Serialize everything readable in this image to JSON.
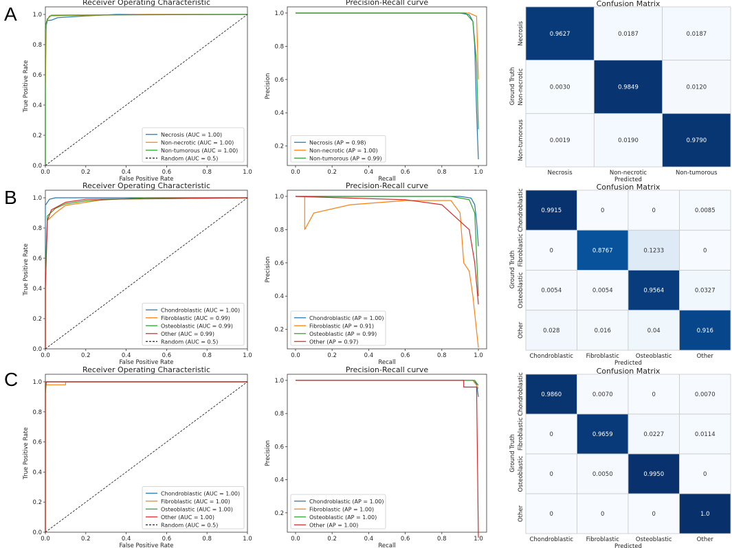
{
  "panel_labels": [
    "A",
    "B",
    "C"
  ],
  "colors": {
    "blue": "#1f77b4",
    "orange": "#ff7f0e",
    "green": "#2ca02c",
    "red": "#d62728",
    "random": "#222222",
    "cm_low": "#f7fbff",
    "cm_high": "#08306b"
  },
  "chart_data": [
    {
      "panel": "A",
      "type": "line",
      "title": "Receiver Operating Characteristic",
      "xlabel": "False Positive Rate",
      "ylabel": "True Positive Rate",
      "xlim": [
        0,
        1
      ],
      "ylim": [
        0,
        1.05
      ],
      "xticks": [
        "0.0",
        "0.2",
        "0.4",
        "0.6",
        "0.8",
        "1.0"
      ],
      "yticks": [
        "0.0",
        "0.2",
        "0.4",
        "0.6",
        "0.8",
        "1.0"
      ],
      "legend": "bottom-right",
      "series": [
        {
          "name": "Necrosis (AUC = 1.00)",
          "color": "#1f77b4",
          "points": [
            [
              0,
              0
            ],
            [
              0,
              0.9
            ],
            [
              0.01,
              0.96
            ],
            [
              0.03,
              0.962
            ],
            [
              0.06,
              0.978
            ],
            [
              0.2,
              0.99
            ],
            [
              0.35,
              1
            ],
            [
              1,
              1
            ]
          ]
        },
        {
          "name": "Non-necrotic (AUC = 1.00)",
          "color": "#ff7f0e",
          "points": [
            [
              0,
              0
            ],
            [
              0,
              0.5
            ],
            [
              0.005,
              0.95
            ],
            [
              0.02,
              0.99
            ],
            [
              0.5,
              1
            ],
            [
              1,
              1
            ]
          ]
        },
        {
          "name": "Non-tumorous (AUC = 1.00)",
          "color": "#2ca02c",
          "points": [
            [
              0,
              0
            ],
            [
              0,
              0.92
            ],
            [
              0.01,
              0.97
            ],
            [
              0.03,
              0.995
            ],
            [
              1,
              1
            ]
          ]
        },
        {
          "name": "Random (AUC = 0.5)",
          "color": "#222222",
          "dashed": true,
          "points": [
            [
              0,
              0
            ],
            [
              1,
              1
            ]
          ]
        }
      ]
    },
    {
      "panel": "A",
      "type": "line",
      "title": "Precision-Recall curve",
      "xlabel": "Recall",
      "ylabel": "Precision",
      "xlim": [
        -0.045,
        1.045
      ],
      "ylim": [
        0.083,
        1.037
      ],
      "xticks": [
        "0.0",
        "0.2",
        "0.4",
        "0.6",
        "0.8",
        "1.0"
      ],
      "yticks": [
        "0.2",
        "0.4",
        "0.6",
        "0.8",
        "1.0"
      ],
      "legend": "bottom-left",
      "series": [
        {
          "name": "Necrosis (AP = 0.98)",
          "color": "#1f77b4",
          "points": [
            [
              0,
              1
            ],
            [
              0.9,
              1
            ],
            [
              0.95,
              0.99
            ],
            [
              0.97,
              0.95
            ],
            [
              0.98,
              0.8
            ],
            [
              0.99,
              0.4
            ],
            [
              1,
              0.12
            ]
          ]
        },
        {
          "name": "Non-necrotic (AP = 1.00)",
          "color": "#ff7f0e",
          "points": [
            [
              0,
              1
            ],
            [
              0.95,
              1
            ],
            [
              0.99,
              0.98
            ],
            [
              1,
              0.6
            ]
          ]
        },
        {
          "name": "Non-tumorous (AP = 0.99)",
          "color": "#2ca02c",
          "points": [
            [
              0,
              1
            ],
            [
              0.93,
              1
            ],
            [
              0.97,
              0.95
            ],
            [
              0.99,
              0.7
            ],
            [
              1,
              0.3
            ]
          ]
        }
      ]
    },
    {
      "panel": "A",
      "type": "heatmap",
      "title": "Confusion Matrix",
      "xlabel": "Predicted",
      "ylabel": "Ground Truth",
      "labels": [
        "Necrosis",
        "Non-necrotic",
        "Non-tumorous"
      ],
      "values": [
        [
          "0.9627",
          "0.0187",
          "0.0187"
        ],
        [
          "0.0030",
          "0.9849",
          "0.0120"
        ],
        [
          "0.0019",
          "0.0190",
          "0.9790"
        ]
      ]
    },
    {
      "panel": "B",
      "type": "line",
      "title": "Receiver Operating Characteristic",
      "xlabel": "False Positive Rate",
      "ylabel": "True Positive Rate",
      "xlim": [
        0,
        1
      ],
      "ylim": [
        0,
        1.05
      ],
      "xticks": [
        "0.0",
        "0.2",
        "0.4",
        "0.6",
        "0.8",
        "1.0"
      ],
      "yticks": [
        "0.0",
        "0.2",
        "0.4",
        "0.6",
        "0.8",
        "1.0"
      ],
      "legend": "bottom-right",
      "series": [
        {
          "name": "Chondroblastic (AUC = 1.00)",
          "color": "#1f77b4",
          "points": [
            [
              0,
              0
            ],
            [
              0,
              0.95
            ],
            [
              0.02,
              0.99
            ],
            [
              0.05,
              1
            ],
            [
              1,
              1
            ]
          ]
        },
        {
          "name": "Fibroblastic (AUC = 0.99)",
          "color": "#ff7f0e",
          "points": [
            [
              0,
              0
            ],
            [
              0,
              0.4
            ],
            [
              0.01,
              0.85
            ],
            [
              0.05,
              0.9
            ],
            [
              0.1,
              0.95
            ],
            [
              0.3,
              0.99
            ],
            [
              1,
              1
            ]
          ]
        },
        {
          "name": "Osteoblastic (AUC = 0.99)",
          "color": "#2ca02c",
          "points": [
            [
              0,
              0
            ],
            [
              0,
              0.5
            ],
            [
              0.01,
              0.88
            ],
            [
              0.05,
              0.93
            ],
            [
              0.1,
              0.96
            ],
            [
              0.2,
              0.98
            ],
            [
              0.5,
              1
            ],
            [
              1,
              1
            ]
          ]
        },
        {
          "name": "Other (AUC = 0.99)",
          "color": "#d62728",
          "points": [
            [
              0,
              0
            ],
            [
              0,
              0.4
            ],
            [
              0.01,
              0.85
            ],
            [
              0.03,
              0.92
            ],
            [
              0.1,
              0.97
            ],
            [
              0.2,
              0.99
            ],
            [
              1,
              1
            ]
          ]
        },
        {
          "name": "Random (AUC = 0.5)",
          "color": "#222222",
          "dashed": true,
          "points": [
            [
              0,
              0
            ],
            [
              1,
              1
            ]
          ]
        }
      ]
    },
    {
      "panel": "B",
      "type": "line",
      "title": "Precision-Recall curve",
      "xlabel": "Recall",
      "ylabel": "Precision",
      "xlim": [
        -0.045,
        1.045
      ],
      "ylim": [
        0.083,
        1.037
      ],
      "xticks": [
        "0.0",
        "0.2",
        "0.4",
        "0.6",
        "0.8",
        "1.0"
      ],
      "yticks": [
        "0.2",
        "0.4",
        "0.6",
        "0.8",
        "1.0"
      ],
      "legend": "bottom-left",
      "series": [
        {
          "name": "Chondroblastic (AP = 1.00)",
          "color": "#1f77b4",
          "points": [
            [
              0,
              1
            ],
            [
              0.9,
              1
            ],
            [
              0.96,
              0.99
            ],
            [
              0.98,
              0.95
            ],
            [
              0.99,
              0.85
            ],
            [
              1,
              0.7
            ]
          ]
        },
        {
          "name": "Fibroblastic (AP = 0.91)",
          "color": "#ff7f0e",
          "points": [
            [
              0.05,
              1
            ],
            [
              0.05,
              0.8
            ],
            [
              0.1,
              0.9
            ],
            [
              0.3,
              0.95
            ],
            [
              0.6,
              0.975
            ],
            [
              0.85,
              0.975
            ],
            [
              0.9,
              0.9
            ],
            [
              0.92,
              0.6
            ],
            [
              0.95,
              0.55
            ],
            [
              0.97,
              0.4
            ],
            [
              1,
              0.09
            ]
          ]
        },
        {
          "name": "Osteoblastic (AP = 0.99)",
          "color": "#2ca02c",
          "points": [
            [
              0,
              1
            ],
            [
              0.85,
              1
            ],
            [
              0.95,
              0.98
            ],
            [
              0.98,
              0.9
            ],
            [
              1,
              0.4
            ]
          ]
        },
        {
          "name": "Other (AP = 0.97)",
          "color": "#d62728",
          "points": [
            [
              0,
              1
            ],
            [
              0.6,
              0.98
            ],
            [
              0.8,
              0.95
            ],
            [
              0.9,
              0.85
            ],
            [
              0.95,
              0.8
            ],
            [
              0.98,
              0.6
            ],
            [
              1,
              0.35
            ]
          ]
        }
      ]
    },
    {
      "panel": "B",
      "type": "heatmap",
      "title": "Confusion Matrix",
      "xlabel": "Predicted",
      "ylabel": "Ground Truth",
      "labels": [
        "Chondroblastic",
        "Fibroblastic",
        "Osteoblastic",
        "Other"
      ],
      "values": [
        [
          "0.9915",
          "0",
          "0",
          "0.0085"
        ],
        [
          "0",
          "0.8767",
          "0.1233",
          "0"
        ],
        [
          "0.0054",
          "0.0054",
          "0.9564",
          "0.0327"
        ],
        [
          "0.028",
          "0.016",
          "0.04",
          "0.916"
        ]
      ]
    },
    {
      "panel": "C",
      "type": "line",
      "title": "Receiver Operating Characteristic",
      "xlabel": "False Positive Rate",
      "ylabel": "True Positive Rate",
      "xlim": [
        0,
        1
      ],
      "ylim": [
        0,
        1.05
      ],
      "xticks": [
        "0.0",
        "0.2",
        "0.4",
        "0.6",
        "0.8",
        "1.0"
      ],
      "yticks": [
        "0.0",
        "0.2",
        "0.4",
        "0.6",
        "0.8",
        "1.0"
      ],
      "legend": "bottom-right",
      "series": [
        {
          "name": "Chondroblastic (AUC = 1.00)",
          "color": "#1f77b4",
          "points": [
            [
              0,
              0
            ],
            [
              0,
              0.99
            ],
            [
              0.01,
              1
            ],
            [
              1,
              1
            ]
          ]
        },
        {
          "name": "Fibroblastic (AUC = 1.00)",
          "color": "#ff7f0e",
          "points": [
            [
              0,
              0
            ],
            [
              0,
              0.98
            ],
            [
              0.1,
              0.98
            ],
            [
              0.1,
              1
            ],
            [
              1,
              1
            ]
          ]
        },
        {
          "name": "Osteoblastic (AUC = 1.00)",
          "color": "#2ca02c",
          "points": [
            [
              0,
              0
            ],
            [
              0,
              0.92
            ],
            [
              0.005,
              1
            ],
            [
              1,
              1
            ]
          ]
        },
        {
          "name": "Other (AUC = 1.00)",
          "color": "#d62728",
          "points": [
            [
              0,
              0
            ],
            [
              0,
              1
            ],
            [
              1,
              1
            ]
          ]
        },
        {
          "name": "Random (AUC = 0.5)",
          "color": "#222222",
          "dashed": true,
          "points": [
            [
              0,
              0
            ],
            [
              1,
              1
            ]
          ]
        }
      ]
    },
    {
      "panel": "C",
      "type": "line",
      "title": "Precision-Recall curve",
      "xlabel": "Recall",
      "ylabel": "Precision",
      "xlim": [
        -0.045,
        1.045
      ],
      "ylim": [
        0.083,
        1.037
      ],
      "xticks": [
        "0.0",
        "0.2",
        "0.4",
        "0.6",
        "0.8",
        "1.0"
      ],
      "yticks": [
        "0.2",
        "0.4",
        "0.6",
        "0.8",
        "1.0"
      ],
      "legend": "bottom-left",
      "series": [
        {
          "name": "Chondroblastic (AP = 1.00)",
          "color": "#1f77b4",
          "points": [
            [
              0,
              1
            ],
            [
              0.97,
              1
            ],
            [
              0.99,
              0.98
            ],
            [
              1,
              0.9
            ]
          ]
        },
        {
          "name": "Fibroblastic (AP = 1.00)",
          "color": "#ff7f0e",
          "points": [
            [
              0,
              1
            ],
            [
              0.97,
              1
            ],
            [
              0.99,
              0.97
            ],
            [
              1,
              0.95
            ]
          ]
        },
        {
          "name": "Osteoblastic (AP = 1.00)",
          "color": "#2ca02c",
          "points": [
            [
              0,
              1
            ],
            [
              0.98,
              1
            ],
            [
              1,
              0.97
            ]
          ]
        },
        {
          "name": "Other (AP = 1.00)",
          "color": "#d62728",
          "points": [
            [
              0,
              1
            ],
            [
              0.92,
              1
            ],
            [
              0.92,
              0.96
            ],
            [
              0.99,
              0.96
            ],
            [
              1,
              0.05
            ]
          ]
        }
      ]
    },
    {
      "panel": "C",
      "type": "heatmap",
      "title": "Confusion Matrix",
      "xlabel": "Predicted",
      "ylabel": "Ground Truth",
      "labels": [
        "Chondroblastic",
        "Fibroblastic",
        "Osteoblastic",
        "Other"
      ],
      "values": [
        [
          "0.9860",
          "0.0070",
          "0",
          "0.0070"
        ],
        [
          "0",
          "0.9659",
          "0.0227",
          "0.0114"
        ],
        [
          "0",
          "0.0050",
          "0.9950",
          "0"
        ],
        [
          "0",
          "0",
          "0",
          "1.0"
        ]
      ]
    }
  ]
}
